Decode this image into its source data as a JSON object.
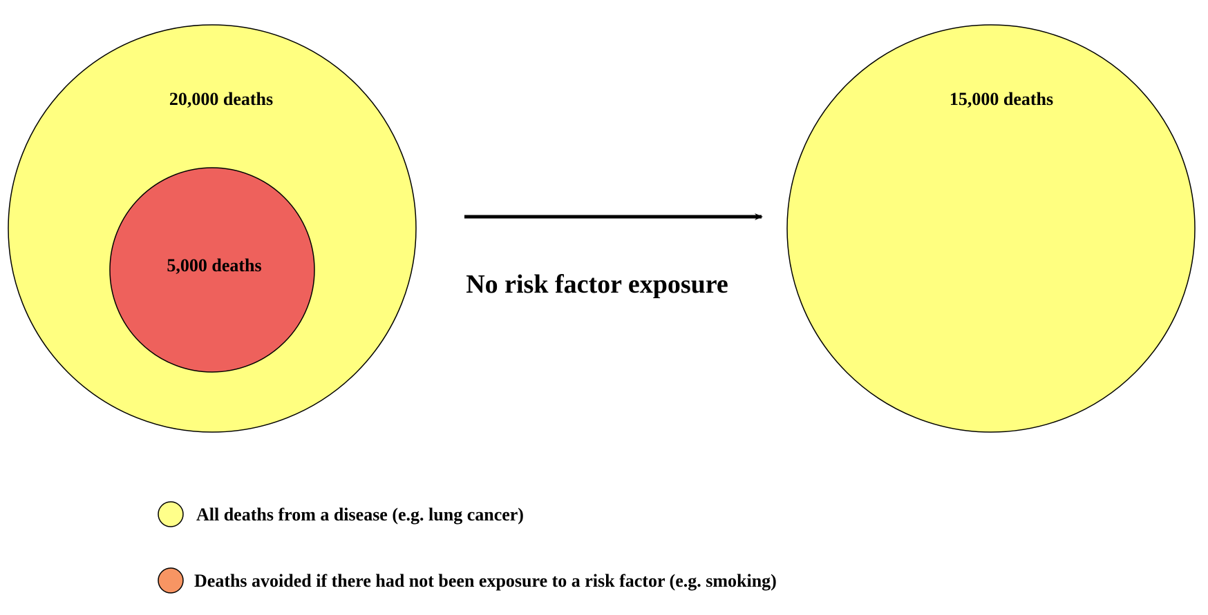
{
  "left_diagram": {
    "outer_label": "20,000 deaths",
    "inner_label": "5,000 deaths"
  },
  "transition": {
    "label": "No risk factor exposure"
  },
  "right_diagram": {
    "outer_label": "15,000 deaths"
  },
  "legend": {
    "items": [
      {
        "label": "All deaths from a disease (e.g. lung cancer)",
        "color": "#FFFF8A"
      },
      {
        "label": "Deaths avoided if there had not been exposure to a risk factor (e.g. smoking)",
        "color": "#F79563"
      }
    ]
  },
  "colors": {
    "all_deaths_fill": "#FFFF80",
    "avoided_deaths_fill": "#EE615C",
    "outline": "#000000"
  }
}
